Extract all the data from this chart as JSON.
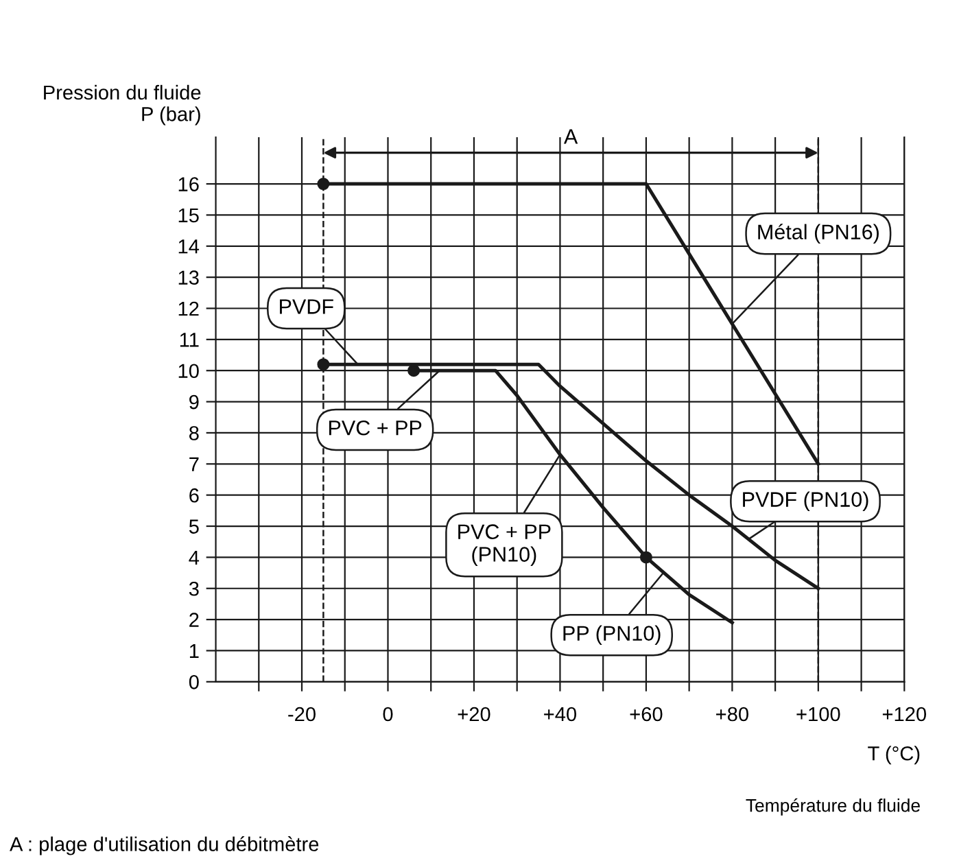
{
  "chart_data": {
    "type": "line",
    "ylabel": "Pression du fluide\nP (bar)",
    "xlabel": "T (°C)",
    "xlim": [
      -40,
      120
    ],
    "xticks": [
      {
        "value": -30,
        "label": null
      },
      {
        "value": -20,
        "label": "-20"
      },
      {
        "value": -10,
        "label": null
      },
      0,
      {
        "value": 10,
        "label": null
      },
      {
        "value": 20,
        "label": "+20"
      },
      {
        "value": 30,
        "label": null
      },
      {
        "value": 40,
        "label": "+40"
      },
      {
        "value": 50,
        "label": null
      },
      {
        "value": 60,
        "label": "+60"
      },
      {
        "value": 70,
        "label": null
      },
      {
        "value": 80,
        "label": "+80"
      },
      {
        "value": 90,
        "label": null
      },
      {
        "value": 100,
        "label": "+100"
      },
      {
        "value": 110,
        "label": null
      },
      {
        "value": 120,
        "label": "+120"
      }
    ],
    "ylim": [
      0,
      17.5
    ],
    "yticks": [
      0,
      1,
      2,
      3,
      4,
      5,
      6,
      7,
      8,
      9,
      10,
      11,
      12,
      13,
      14,
      15,
      16
    ],
    "grid": true,
    "series": [
      {
        "color": "#1a1a1a",
        "x": [
          -15,
          60,
          100
        ],
        "values": [
          16,
          16,
          7
        ]
      },
      {
        "color": "#1a1a1a",
        "x": [
          -15,
          35,
          40,
          50,
          60,
          70,
          80,
          90,
          100
        ],
        "values": [
          10.2,
          10.2,
          9.5,
          8.3,
          7.1,
          6.0,
          5.0,
          3.9,
          3.0
        ]
      },
      {
        "color": "#1a1a1a",
        "x": [
          6,
          25,
          30,
          40,
          50,
          60,
          70,
          80
        ],
        "values": [
          10,
          10,
          9.2,
          7.3,
          5.6,
          4.0,
          2.8,
          1.9
        ]
      },
      {
        "type": "scatter",
        "color": "#1a1a1a",
        "x": [
          -15,
          -15,
          6,
          60
        ],
        "values": [
          16,
          10.2,
          10,
          4.0
        ]
      }
    ],
    "ref_lines": [
      {
        "axis": "x",
        "value": -15,
        "color": "#1a1a1a",
        "line_style": "dashed"
      },
      {
        "axis": "x",
        "value": 100,
        "color": "#1a1a1a",
        "line_style": "dashed"
      }
    ],
    "annotations": [
      "A",
      {
        "text": "Métal (PN16)",
        "x": 80,
        "y": 11.5
      },
      {
        "text": "PVDF",
        "x": -7,
        "y": 10.2
      },
      {
        "text": "PVC + PP",
        "x": 12,
        "y": 10
      },
      {
        "text": "PVC + PP\n(PN10)",
        "x": 40,
        "y": 7.3
      },
      {
        "text": "PP (PN10)",
        "x": 64,
        "y": 3.5
      },
      {
        "text": "PVDF (PN10)",
        "x": 84,
        "y": 4.6
      },
      "Température du fluide",
      "A : plage d'utilisation du débitmètre"
    ]
  }
}
